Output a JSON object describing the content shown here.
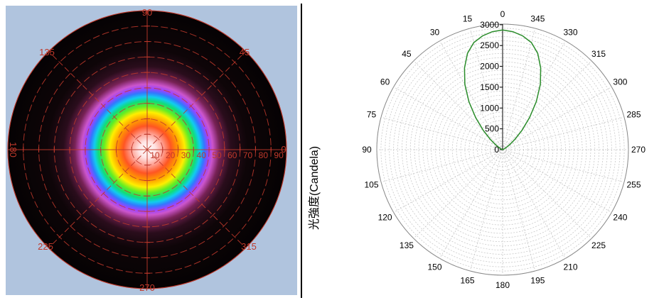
{
  "ylabel": "光強度(Candela)",
  "colors": {
    "panel_bg": "#b0c4de",
    "grid_red": "#c0392b",
    "curve": "#2a8c2a",
    "polar_grid": "#c8c8c8"
  },
  "chart_data": [
    {
      "type": "heatmap",
      "description_kind": "polar-intensity-map",
      "angle_labels": [
        "0",
        "45",
        "90",
        "135",
        "180",
        "225",
        "270",
        "315"
      ],
      "radial_labels": [
        "10",
        "20",
        "30",
        "40",
        "50",
        "60",
        "70",
        "80",
        "90"
      ],
      "colormap_center": "white",
      "colormap_edge": "black"
    },
    {
      "type": "line",
      "polar": true,
      "angle_ticks": [
        "0",
        "15",
        "30",
        "45",
        "60",
        "75",
        "90",
        "105",
        "120",
        "135",
        "150",
        "165",
        "180",
        "195",
        "210",
        "225",
        "240",
        "255",
        "270",
        "285",
        "300",
        "315",
        "330",
        "345"
      ],
      "radial_ticks": [
        "0",
        "500",
        "1000",
        "1500",
        "2000",
        "2500",
        "3000"
      ],
      "rlim": [
        0,
        3000
      ],
      "series": [
        {
          "theta": [
            0,
            5,
            10,
            15,
            20,
            25,
            30,
            35,
            40,
            45,
            50,
            55,
            60,
            65,
            70,
            75,
            80,
            85,
            90,
            270,
            275,
            280,
            285,
            290,
            295,
            300,
            305,
            310,
            315,
            320,
            325,
            330,
            335,
            340,
            345,
            350,
            355,
            360
          ],
          "r": [
            2860,
            2830,
            2760,
            2650,
            2450,
            2150,
            1800,
            1400,
            1000,
            650,
            380,
            200,
            90,
            40,
            15,
            5,
            2,
            0,
            0,
            0,
            0,
            2,
            5,
            15,
            40,
            90,
            200,
            380,
            650,
            1000,
            1400,
            1800,
            2150,
            2450,
            2650,
            2760,
            2830,
            2860
          ]
        }
      ]
    }
  ]
}
